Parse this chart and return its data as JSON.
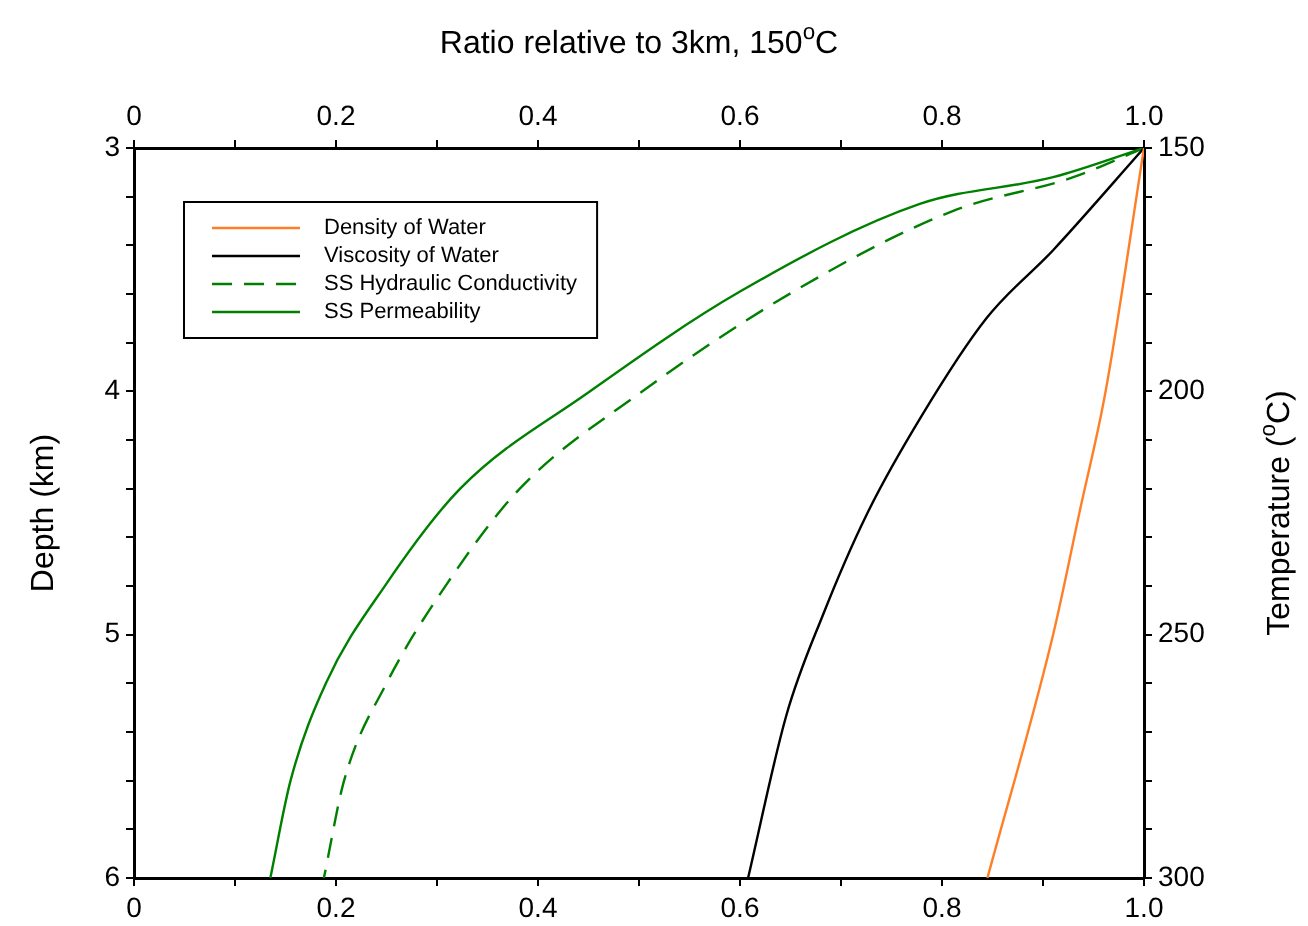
{
  "chart_data": {
    "type": "line",
    "x2label": "Ratio relative to 3km, 150$^{o}$C",
    "ylabel": "Depth (km)",
    "y2label": "Temperature ($^{o}$C)",
    "xlim": [
      0,
      1
    ],
    "xticks": [
      0,
      {
        "value": 0.1,
        "label": null
      },
      0.2,
      {
        "value": 0.3,
        "label": null
      },
      0.4,
      {
        "value": 0.5,
        "label": null
      },
      0.6,
      {
        "value": 0.7,
        "label": null
      },
      0.8,
      {
        "value": 0.9,
        "label": null
      },
      {
        "value": 1,
        "label": "1.0"
      }
    ],
    "x2lim": [
      0,
      1
    ],
    "x2ticks": [
      0,
      {
        "value": 0.1,
        "label": null
      },
      0.2,
      {
        "value": 0.3,
        "label": null
      },
      0.4,
      {
        "value": 0.5,
        "label": null
      },
      0.6,
      {
        "value": 0.7,
        "label": null
      },
      0.8,
      {
        "value": 0.9,
        "label": null
      },
      {
        "value": 1,
        "label": "1.0"
      }
    ],
    "ylim": [
      6,
      3
    ],
    "yticks": [
      3,
      {
        "value": 3.2,
        "label": null
      },
      {
        "value": 3.4,
        "label": null
      },
      {
        "value": 3.6,
        "label": null
      },
      {
        "value": 3.8,
        "label": null
      },
      4,
      {
        "value": 4.2,
        "label": null
      },
      {
        "value": 4.4,
        "label": null
      },
      {
        "value": 4.6,
        "label": null
      },
      {
        "value": 4.8,
        "label": null
      },
      5,
      {
        "value": 5.2,
        "label": null
      },
      {
        "value": 5.4,
        "label": null
      },
      {
        "value": 5.6,
        "label": null
      },
      {
        "value": 5.8,
        "label": null
      },
      6
    ],
    "y2lim": [
      300,
      150
    ],
    "y2ticks": [
      150,
      {
        "value": 160,
        "label": null
      },
      {
        "value": 170,
        "label": null
      },
      {
        "value": 180,
        "label": null
      },
      {
        "value": 190,
        "label": null
      },
      200,
      {
        "value": 210,
        "label": null
      },
      {
        "value": 220,
        "label": null
      },
      {
        "value": 230,
        "label": null
      },
      {
        "value": 240,
        "label": null
      },
      250,
      {
        "value": 260,
        "label": null
      },
      {
        "value": 270,
        "label": null
      },
      {
        "value": 280,
        "label": null
      },
      {
        "value": 290,
        "label": null
      },
      300
    ],
    "grid": false,
    "legend": "top left",
    "marker": "none",
    "series": [
      {
        "name": "Density of Water",
        "color": "#ff7f27",
        "line_style": "solid",
        "x": [
          1,
          0.962,
          0.936,
          0.91,
          0.845
        ],
        "values": [
          3,
          4,
          4.5,
          5,
          6
        ]
      },
      {
        "name": "Viscosity of Water",
        "color": "#000000",
        "line_style": "solid",
        "x": [
          1,
          0.91,
          0.844,
          0.78,
          0.725,
          0.682,
          0.646,
          0.608
        ],
        "values": [
          3,
          3.42,
          3.7,
          4.1,
          4.51,
          4.92,
          5.33,
          6
        ]
      },
      {
        "name": "SS Hydraulic Conductivity",
        "color": "#008000",
        "line_style": "dashed",
        "x": [
          1,
          0.93,
          0.81,
          0.653,
          0.5,
          0.382,
          0.31,
          0.25,
          0.208,
          0.188
        ],
        "values": [
          3,
          3.12,
          3.26,
          3.59,
          4.01,
          4.4,
          4.79,
          5.2,
          5.6,
          6
        ]
      },
      {
        "name": "SS Permeability",
        "color": "#008000",
        "line_style": "solid",
        "x": [
          1,
          0.91,
          0.778,
          0.6,
          0.448,
          0.323,
          0.25,
          0.19,
          0.155,
          0.135
        ],
        "values": [
          3,
          3.12,
          3.23,
          3.59,
          4.01,
          4.4,
          4.79,
          5.2,
          5.6,
          6
        ]
      }
    ]
  }
}
